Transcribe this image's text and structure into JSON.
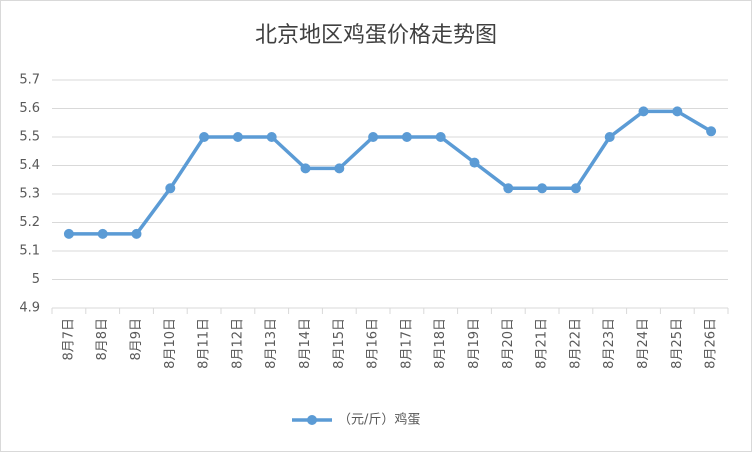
{
  "chart_data": {
    "type": "line",
    "title": "北京地区鸡蛋价格走势图",
    "categories": [
      "8月7日",
      "8月8日",
      "8月9日",
      "8月10日",
      "8月11日",
      "8月12日",
      "8月13日",
      "8月14日",
      "8月15日",
      "8月16日",
      "8月17日",
      "8月18日",
      "8月19日",
      "8月20日",
      "8月21日",
      "8月22日",
      "8月23日",
      "8月24日",
      "8月25日",
      "8月26日"
    ],
    "series": [
      {
        "name": "（元/斤）鸡蛋",
        "color": "#5b9bd5",
        "values": [
          5.16,
          5.16,
          5.16,
          5.32,
          5.5,
          5.5,
          5.5,
          5.39,
          5.39,
          5.5,
          5.5,
          5.5,
          5.41,
          5.32,
          5.32,
          5.32,
          5.5,
          5.59,
          5.59,
          5.52
        ]
      }
    ],
    "ylim": [
      4.9,
      5.7
    ],
    "yticks": [
      4.9,
      5,
      5.1,
      5.2,
      5.3,
      5.4,
      5.5,
      5.6,
      5.7
    ],
    "grid": true,
    "legend": "bottom"
  }
}
